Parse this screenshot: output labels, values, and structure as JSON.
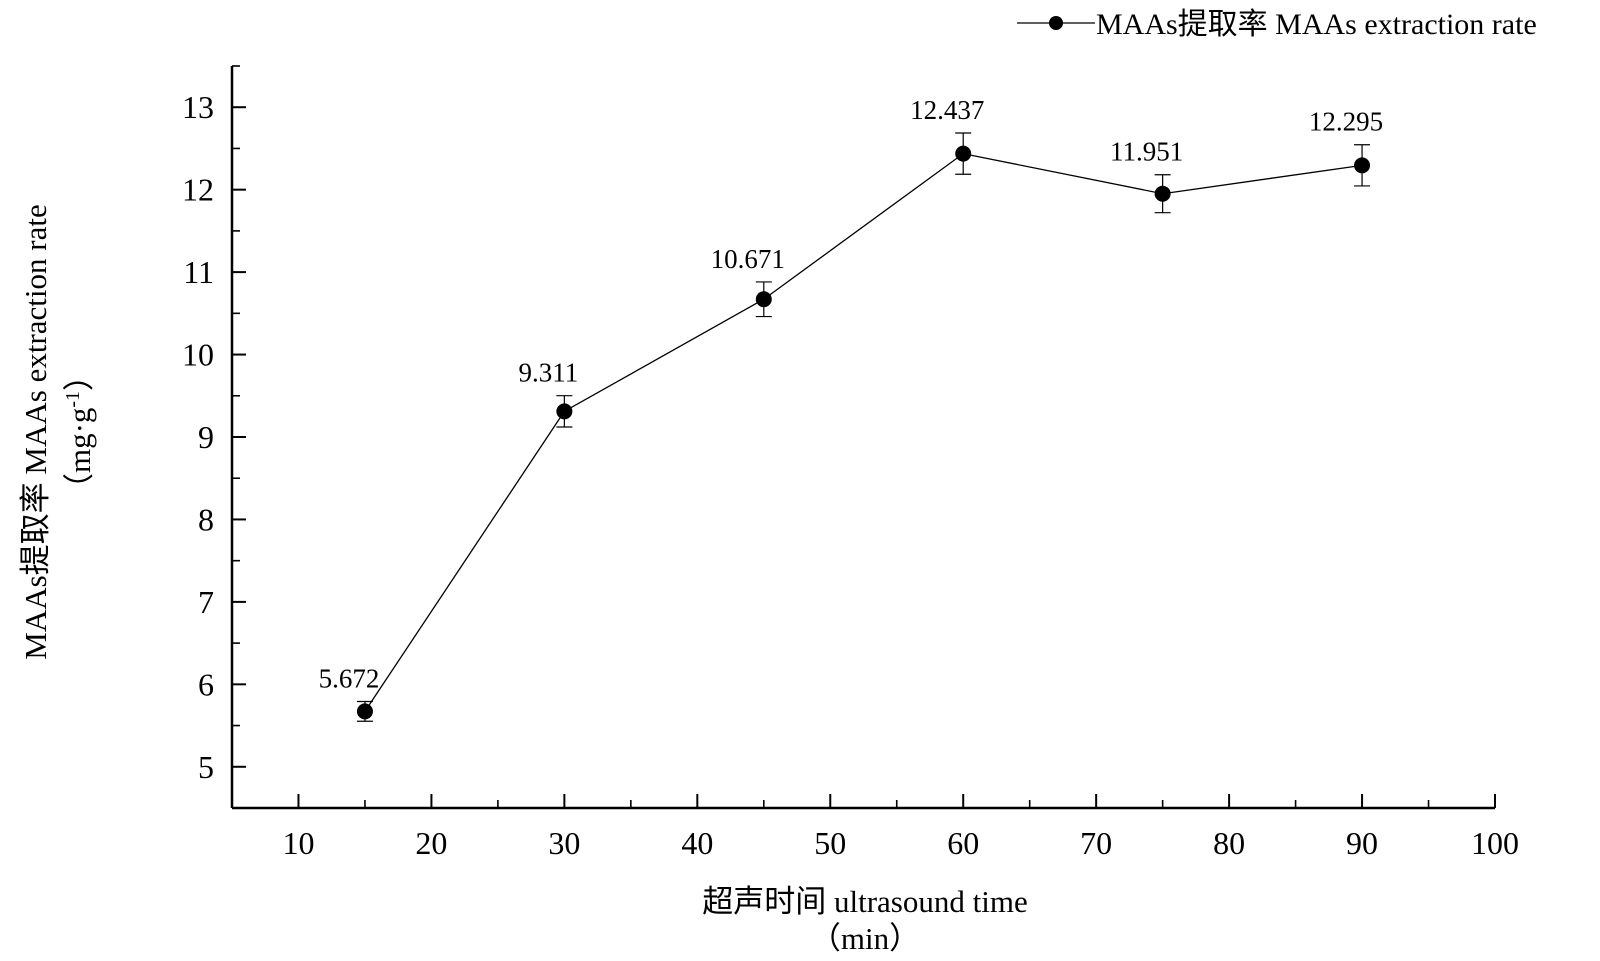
{
  "chart_data": {
    "type": "line",
    "title": "",
    "x": [
      15,
      30,
      45,
      60,
      75,
      90
    ],
    "series": [
      {
        "name": "MAAs提取率 MAAs extraction rate",
        "values": [
          5.672,
          9.311,
          10.671,
          12.437,
          11.951,
          12.295
        ],
        "error": [
          0.12,
          0.19,
          0.21,
          0.25,
          0.23,
          0.25
        ],
        "data_labels": [
          "5.672",
          "9.311",
          "10.671",
          "12.437",
          "11.951",
          "12.295"
        ],
        "color": "#000000",
        "marker": "circle"
      }
    ],
    "xlabel": "超声时间 ultrasound time",
    "xunit": "（min）",
    "ylabel": "MAAs提取率 MAAs extraction rate",
    "yunit_open": "（mg·g",
    "yunit_sup": "-1",
    "yunit_close": "）",
    "xlim": [
      5,
      100
    ],
    "ylim": [
      4.5,
      13.5
    ],
    "xticks": [
      10,
      20,
      30,
      40,
      50,
      60,
      70,
      80,
      90,
      100
    ],
    "xtick_labels": [
      "10",
      "20",
      "30",
      "40",
      "50",
      "60",
      "70",
      "80",
      "90",
      "100"
    ],
    "yticks": [
      5,
      6,
      7,
      8,
      9,
      10,
      11,
      12,
      13
    ],
    "ytick_labels": [
      "5",
      "6",
      "7",
      "8",
      "9",
      "10",
      "11",
      "12",
      "13"
    ],
    "legend": {
      "label": "MAAs提取率 MAAs extraction rate",
      "position": "top-right"
    },
    "grid": false
  }
}
